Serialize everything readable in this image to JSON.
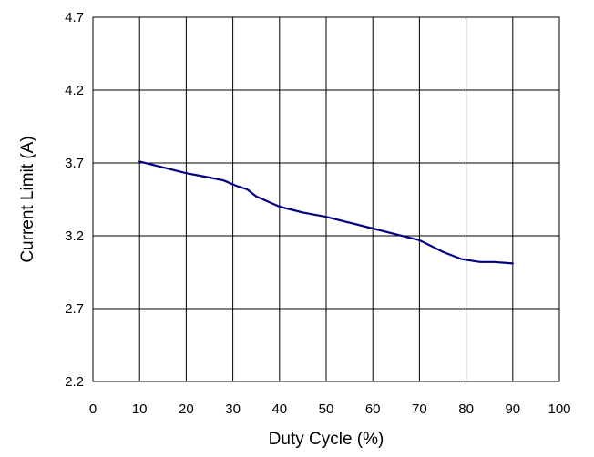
{
  "chart_data": {
    "type": "line",
    "title": "",
    "xlabel": "Duty Cycle (%)",
    "ylabel": "Current Limit (A)",
    "xlim": [
      0,
      100
    ],
    "ylim": [
      2.2,
      4.7
    ],
    "x_ticks": [
      0,
      10,
      20,
      30,
      40,
      50,
      60,
      70,
      80,
      90,
      100
    ],
    "x_tick_labels": [
      "0",
      "10",
      "20",
      "30",
      "40",
      "50",
      "60",
      "70",
      "80",
      "90",
      "100"
    ],
    "y_ticks": [
      2.2,
      2.7,
      3.2,
      3.7,
      4.2,
      4.7
    ],
    "y_tick_labels": [
      "2.2",
      "2.7",
      "3.2",
      "3.7",
      "4.2",
      "4.7"
    ],
    "grid": true,
    "series": [
      {
        "color": "#000080",
        "x": [
          10,
          15,
          20,
          25,
          28,
          31,
          33,
          35,
          40,
          45,
          50,
          55,
          60,
          65,
          70,
          75,
          79,
          83,
          86,
          90
        ],
        "y": [
          3.71,
          3.67,
          3.63,
          3.6,
          3.58,
          3.54,
          3.52,
          3.47,
          3.4,
          3.36,
          3.33,
          3.29,
          3.25,
          3.21,
          3.17,
          3.09,
          3.04,
          3.02,
          3.02,
          3.01
        ]
      }
    ]
  }
}
